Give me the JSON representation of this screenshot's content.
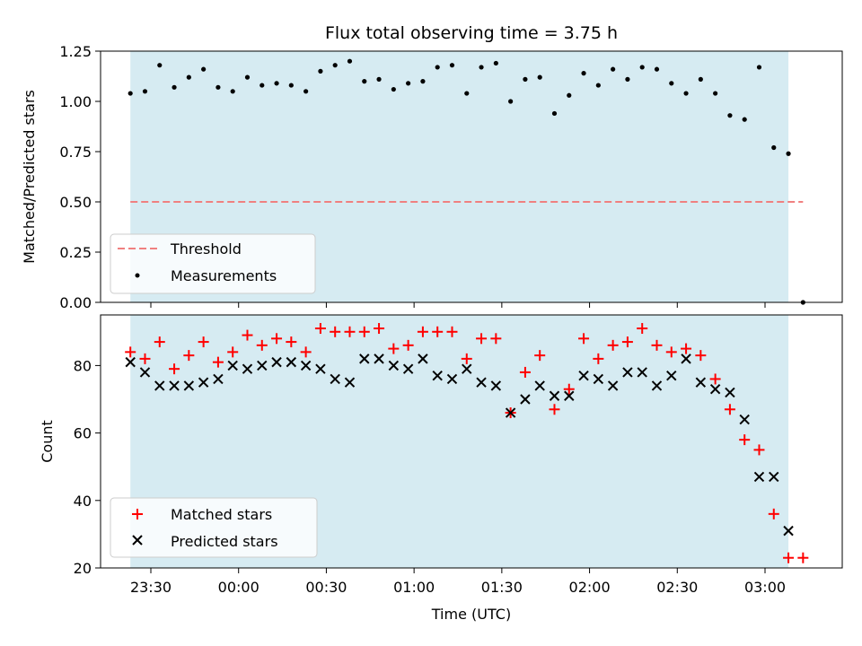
{
  "chart_data": {
    "type": "scatter",
    "title": "Flux total observing time = 3.75 h",
    "xlabel": "Time (UTC)",
    "x_ticks": [
      "23:30",
      "00:00",
      "00:30",
      "01:00",
      "01:30",
      "02:00",
      "02:30",
      "03:00"
    ],
    "shaded_span": {
      "from": "23:23",
      "to": "03:08",
      "color": "#add8e6"
    },
    "top_panel": {
      "ylabel": "Matched/Predicted stars",
      "ylim": [
        0,
        1.25
      ],
      "yticks": [
        "0.00",
        "0.25",
        "0.50",
        "0.75",
        "1.00",
        "1.25"
      ],
      "legend": {
        "placement": "lower-left",
        "entries": [
          "Threshold",
          "Measurements"
        ]
      },
      "threshold": {
        "name": "Threshold",
        "value": 0.5,
        "x_from": "23:23",
        "x_to": "03:13",
        "color": "#f08080"
      },
      "measurements": {
        "name": "Measurements",
        "color": "#000000",
        "x": [
          "23:23",
          "23:28",
          "23:33",
          "23:38",
          "23:43",
          "23:48",
          "23:53",
          "23:58",
          "00:03",
          "00:08",
          "00:13",
          "00:18",
          "00:23",
          "00:28",
          "00:33",
          "00:38",
          "00:43",
          "00:48",
          "00:53",
          "00:58",
          "01:03",
          "01:08",
          "01:13",
          "01:18",
          "01:23",
          "01:28",
          "01:33",
          "01:38",
          "01:43",
          "01:48",
          "01:53",
          "01:58",
          "02:03",
          "02:08",
          "02:13",
          "02:18",
          "02:23",
          "02:28",
          "02:33",
          "02:38",
          "02:43",
          "02:48",
          "02:53",
          "02:58",
          "03:03",
          "03:08",
          "03:13"
        ],
        "y": [
          1.04,
          1.05,
          1.18,
          1.07,
          1.12,
          1.16,
          1.07,
          1.05,
          1.12,
          1.08,
          1.09,
          1.08,
          1.05,
          1.15,
          1.18,
          1.2,
          1.1,
          1.11,
          1.06,
          1.09,
          1.1,
          1.17,
          1.18,
          1.04,
          1.17,
          1.19,
          1.0,
          1.11,
          1.12,
          0.94,
          1.03,
          1.14,
          1.08,
          1.16,
          1.11,
          1.17,
          1.16,
          1.09,
          1.04,
          1.11,
          1.04,
          0.93,
          0.91,
          1.17,
          0.77,
          0.74,
          0.0
        ]
      }
    },
    "bottom_panel": {
      "ylabel": "Count",
      "ylim": [
        20,
        95
      ],
      "yticks": [
        "20",
        "40",
        "60",
        "80"
      ],
      "legend": {
        "placement": "lower-left",
        "entries": [
          "Matched stars",
          "Predicted stars"
        ]
      },
      "matched": {
        "name": "Matched stars",
        "color": "#ff0000",
        "x": [
          "23:23",
          "23:28",
          "23:33",
          "23:38",
          "23:43",
          "23:48",
          "23:53",
          "23:58",
          "00:03",
          "00:08",
          "00:13",
          "00:18",
          "00:23",
          "00:28",
          "00:33",
          "00:38",
          "00:43",
          "00:48",
          "00:53",
          "00:58",
          "01:03",
          "01:08",
          "01:13",
          "01:18",
          "01:23",
          "01:28",
          "01:33",
          "01:38",
          "01:43",
          "01:48",
          "01:53",
          "01:58",
          "02:03",
          "02:08",
          "02:13",
          "02:18",
          "02:23",
          "02:28",
          "02:33",
          "02:38",
          "02:43",
          "02:48",
          "02:53",
          "02:58",
          "03:03",
          "03:08",
          "03:13"
        ],
        "y": [
          84,
          82,
          87,
          79,
          83,
          87,
          81,
          84,
          89,
          86,
          88,
          87,
          84,
          91,
          90,
          90,
          90,
          91,
          85,
          86,
          90,
          90,
          90,
          82,
          88,
          88,
          66,
          78,
          83,
          67,
          73,
          88,
          82,
          86,
          87,
          91,
          86,
          84,
          85,
          83,
          76,
          67,
          58,
          55,
          36,
          23,
          23
        ]
      },
      "predicted": {
        "name": "Predicted stars",
        "color": "#000000",
        "x": [
          "23:23",
          "23:28",
          "23:33",
          "23:38",
          "23:43",
          "23:48",
          "23:53",
          "23:58",
          "00:03",
          "00:08",
          "00:13",
          "00:18",
          "00:23",
          "00:28",
          "00:33",
          "00:38",
          "00:43",
          "00:48",
          "00:53",
          "00:58",
          "01:03",
          "01:08",
          "01:13",
          "01:18",
          "01:23",
          "01:28",
          "01:33",
          "01:38",
          "01:43",
          "01:48",
          "01:53",
          "01:58",
          "02:03",
          "02:08",
          "02:13",
          "02:18",
          "02:23",
          "02:28",
          "02:33",
          "02:38",
          "02:43",
          "02:48",
          "02:53",
          "02:58",
          "03:03",
          "03:08"
        ],
        "y": [
          81,
          78,
          74,
          74,
          74,
          75,
          76,
          80,
          79,
          80,
          81,
          81,
          80,
          79,
          76,
          75,
          82,
          82,
          80,
          79,
          82,
          77,
          76,
          79,
          75,
          74,
          66,
          70,
          74,
          71,
          71,
          77,
          76,
          74,
          78,
          78,
          74,
          77,
          82,
          75,
          73,
          72,
          64,
          47,
          47,
          31
        ]
      }
    }
  }
}
